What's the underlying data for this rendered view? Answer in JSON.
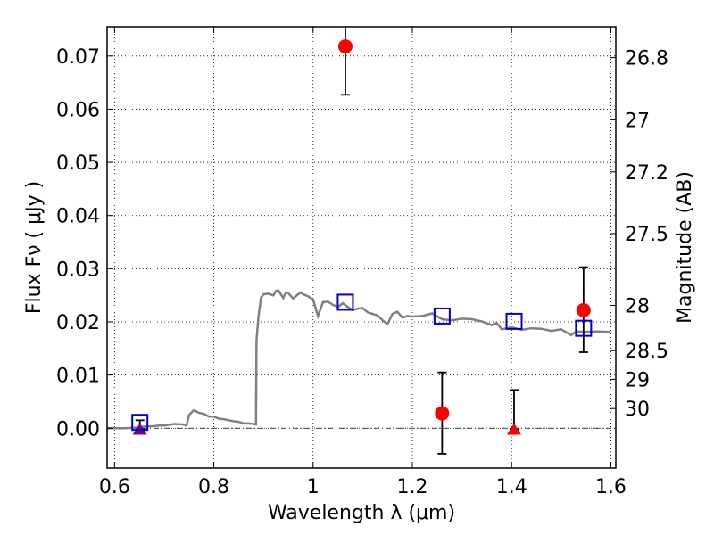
{
  "chart_data": {
    "type": "scatter",
    "xlabel": "Wavelength  λ (μm)",
    "ylabel": "Flux  Fν  ( μJy )",
    "ylabel_right": "Magnitude (AB)",
    "xlim": [
      0.585,
      1.61
    ],
    "ylim": [
      -0.0075,
      0.0755
    ],
    "grid": true,
    "x_ticks": [
      0.6,
      0.8,
      1.0,
      1.2,
      1.4,
      1.6
    ],
    "x_tick_labels": [
      "0.6",
      "0.8",
      "1",
      "1.2",
      "1.4",
      "1.6"
    ],
    "y_ticks": [
      0.0,
      0.01,
      0.02,
      0.03,
      0.04,
      0.05,
      0.06,
      0.07
    ],
    "y_tick_labels": [
      "0.00",
      "0.01",
      "0.02",
      "0.03",
      "0.04",
      "0.05",
      "0.06",
      "0.07"
    ],
    "right_ticks": [
      {
        "label": "26.8",
        "flux": 0.0697
      },
      {
        "label": "27",
        "flux": 0.058
      },
      {
        "label": "27.2",
        "flux": 0.0482
      },
      {
        "label": "27.5",
        "flux": 0.0366
      },
      {
        "label": "28",
        "flux": 0.0231
      },
      {
        "label": "28.5",
        "flux": 0.0146
      },
      {
        "label": "29",
        "flux": 0.0092
      },
      {
        "label": "30",
        "flux": 0.0037
      }
    ],
    "series": [
      {
        "kind": "line",
        "color": "#808080",
        "x": [
          0.585,
          0.6,
          0.62,
          0.64,
          0.66,
          0.68,
          0.69,
          0.7,
          0.72,
          0.74,
          0.745,
          0.75,
          0.76,
          0.77,
          0.78,
          0.79,
          0.8,
          0.81,
          0.82,
          0.83,
          0.84,
          0.85,
          0.86,
          0.87,
          0.88,
          0.885,
          0.886,
          0.89,
          0.895,
          0.9,
          0.91,
          0.92,
          0.925,
          0.93,
          0.94,
          0.945,
          0.95,
          0.96,
          0.97,
          0.975,
          0.98,
          0.99,
          1.0,
          1.01,
          1.02,
          1.03,
          1.04,
          1.05,
          1.06,
          1.07,
          1.08,
          1.09,
          1.1,
          1.11,
          1.12,
          1.13,
          1.14,
          1.15,
          1.16,
          1.17,
          1.18,
          1.19,
          1.2,
          1.22,
          1.24,
          1.26,
          1.28,
          1.3,
          1.32,
          1.34,
          1.36,
          1.37,
          1.38,
          1.4,
          1.42,
          1.44,
          1.46,
          1.48,
          1.5,
          1.52,
          1.53,
          1.55,
          1.57,
          1.6
        ],
        "y": [
          0.0,
          0.0,
          0.0,
          0.0001,
          0.0003,
          0.0004,
          0.0005,
          0.0005,
          0.0008,
          0.0007,
          0.0005,
          0.0025,
          0.0034,
          0.0029,
          0.0027,
          0.0022,
          0.0022,
          0.0018,
          0.0017,
          0.0015,
          0.0013,
          0.0012,
          0.0009,
          0.0009,
          0.0008,
          0.0007,
          0.0165,
          0.021,
          0.0245,
          0.0252,
          0.0253,
          0.025,
          0.0258,
          0.0259,
          0.0245,
          0.0255,
          0.0254,
          0.0244,
          0.0252,
          0.0255,
          0.0252,
          0.0248,
          0.0242,
          0.0211,
          0.0237,
          0.0238,
          0.0232,
          0.0228,
          0.0235,
          0.0228,
          0.0222,
          0.0225,
          0.0226,
          0.0218,
          0.0215,
          0.0212,
          0.0203,
          0.0196,
          0.0215,
          0.0219,
          0.0208,
          0.0211,
          0.021,
          0.0211,
          0.0216,
          0.0205,
          0.0203,
          0.0206,
          0.0205,
          0.0201,
          0.0194,
          0.0198,
          0.0186,
          0.019,
          0.0185,
          0.0188,
          0.0187,
          0.0183,
          0.0186,
          0.0175,
          0.0182,
          0.0181,
          0.0182,
          0.0181
        ]
      },
      {
        "kind": "points",
        "marker": "circle",
        "color": "#ff0000",
        "points": [
          {
            "x": 1.065,
            "y": 0.0718,
            "err_lo": 0.0627,
            "err_hi": 0.078
          },
          {
            "x": 1.26,
            "y": 0.0028,
            "err_lo": -0.0048,
            "err_hi": 0.0105
          },
          {
            "x": 1.545,
            "y": 0.0222,
            "err_lo": 0.0143,
            "err_hi": 0.0303
          }
        ]
      },
      {
        "kind": "points",
        "marker": "triangle",
        "color": "#ff0000",
        "points": [
          {
            "x": 1.405,
            "y": -0.0002,
            "err_lo": -0.0002,
            "err_hi": 0.0072
          }
        ]
      },
      {
        "kind": "points",
        "marker": "triangle",
        "color": "#800080",
        "points": [
          {
            "x": 0.651,
            "y": -0.0002,
            "err_lo": -0.0002,
            "err_hi": 0.0015
          }
        ]
      },
      {
        "kind": "points",
        "marker": "square",
        "color": "#0000cc",
        "points": [
          {
            "x": 0.651,
            "y": 0.0011
          },
          {
            "x": 1.065,
            "y": 0.0237
          },
          {
            "x": 1.26,
            "y": 0.0211
          },
          {
            "x": 1.405,
            "y": 0.0201
          },
          {
            "x": 1.545,
            "y": 0.0188
          }
        ]
      }
    ],
    "zero_line": 0.0
  }
}
